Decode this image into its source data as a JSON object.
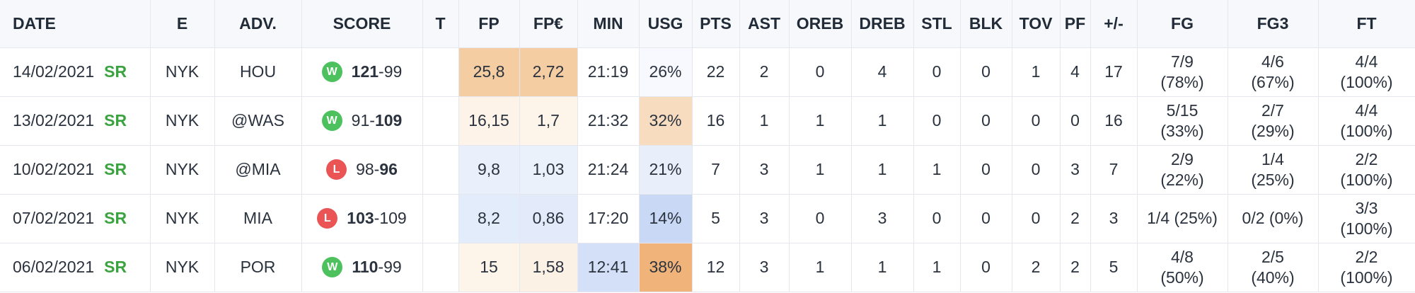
{
  "table": {
    "headers": [
      "DATE",
      "E",
      "ADV.",
      "SCORE",
      "T",
      "FP",
      "FP€",
      "MIN",
      "USG",
      "PTS",
      "AST",
      "OREB",
      "DREB",
      "STL",
      "BLK",
      "TOV",
      "PF",
      "+/-",
      "FG",
      "FG3",
      "FT"
    ],
    "rows": [
      {
        "date": "14/02/2021",
        "status": "SR",
        "team": "NYK",
        "opponent": "HOU",
        "result": "W",
        "result_type": "win",
        "score_a": "121",
        "score_sep": "-",
        "score_b": "99",
        "bold": "a",
        "t": "",
        "fp": "25,8",
        "fp_bg": "#f5cda3",
        "fpe": "2,72",
        "fpe_bg": "#f5cda3",
        "min": "21:19",
        "min_bg": "#ffffff",
        "usg": "26%",
        "usg_bg": "#f7f9fe",
        "pts": "22",
        "ast": "2",
        "oreb": "0",
        "dreb": "4",
        "stl": "0",
        "blk": "0",
        "tov": "1",
        "pf": "4",
        "pm": "17",
        "fg_a": "7/9",
        "fg_b": "(78%)",
        "fg3_a": "4/6",
        "fg3_b": "(67%)",
        "ft_a": "4/4",
        "ft_b": "(100%)"
      },
      {
        "date": "13/02/2021",
        "status": "SR",
        "team": "NYK",
        "opponent": "@WAS",
        "result": "W",
        "result_type": "win",
        "score_a": "91",
        "score_sep": "-",
        "score_b": "109",
        "bold": "b",
        "t": "",
        "fp": "16,15",
        "fp_bg": "#fdf3e9",
        "fpe": "1,7",
        "fpe_bg": "#fdf4ea",
        "min": "21:32",
        "min_bg": "#ffffff",
        "usg": "32%",
        "usg_bg": "#f8dcc0",
        "pts": "16",
        "ast": "1",
        "oreb": "1",
        "dreb": "1",
        "stl": "0",
        "blk": "0",
        "tov": "0",
        "pf": "0",
        "pm": "16",
        "fg_a": "5/15",
        "fg_b": "(33%)",
        "fg3_a": "2/7",
        "fg3_b": "(29%)",
        "ft_a": "4/4",
        "ft_b": "(100%)"
      },
      {
        "date": "10/02/2021",
        "status": "SR",
        "team": "NYK",
        "opponent": "@MIA",
        "result": "L",
        "result_type": "loss",
        "score_a": "98",
        "score_sep": "-",
        "score_b": "96",
        "bold": "b",
        "t": "",
        "fp": "9,8",
        "fp_bg": "#e9f0fb",
        "fpe": "1,03",
        "fpe_bg": "#ebf1fb",
        "min": "21:24",
        "min_bg": "#ffffff",
        "usg": "21%",
        "usg_bg": "#e8effb",
        "pts": "7",
        "ast": "3",
        "oreb": "1",
        "dreb": "1",
        "stl": "1",
        "blk": "0",
        "tov": "0",
        "pf": "3",
        "pm": "7",
        "fg_a": "2/9",
        "fg_b": "(22%)",
        "fg3_a": "1/4",
        "fg3_b": "(25%)",
        "ft_a": "2/2",
        "ft_b": "(100%)"
      },
      {
        "date": "07/02/2021",
        "status": "SR",
        "team": "NYK",
        "opponent": "MIA",
        "result": "L",
        "result_type": "loss",
        "score_a": "103",
        "score_sep": "-",
        "score_b": "109",
        "bold": "a",
        "t": "",
        "fp": "8,2",
        "fp_bg": "#e3ecfa",
        "fpe": "0,86",
        "fpe_bg": "#e3ebfa",
        "min": "17:20",
        "min_bg": "#ffffff",
        "usg": "14%",
        "usg_bg": "#c9d9f5",
        "pts": "5",
        "ast": "3",
        "oreb": "0",
        "dreb": "3",
        "stl": "0",
        "blk": "0",
        "tov": "0",
        "pf": "2",
        "pm": "3",
        "fg_a": "1/4 (25%)",
        "fg_b": "",
        "fg3_a": "0/2 (0%)",
        "fg3_b": "",
        "ft_a": "3/3",
        "ft_b": "(100%)"
      },
      {
        "date": "06/02/2021",
        "status": "SR",
        "team": "NYK",
        "opponent": "POR",
        "result": "W",
        "result_type": "win",
        "score_a": "110",
        "score_sep": "-",
        "score_b": "99",
        "bold": "a",
        "t": "",
        "fp": "15",
        "fp_bg": "#fdf4ea",
        "fpe": "1,58",
        "fpe_bg": "#fcf1e5",
        "min": "12:41",
        "min_bg": "#d3e0f7",
        "usg": "38%",
        "usg_bg": "#f0b379",
        "pts": "12",
        "ast": "3",
        "oreb": "1",
        "dreb": "1",
        "stl": "1",
        "blk": "0",
        "tov": "2",
        "pf": "2",
        "pm": "5",
        "fg_a": "4/8",
        "fg_b": "(50%)",
        "fg3_a": "2/5",
        "fg3_b": "(40%)",
        "ft_a": "2/2",
        "ft_b": "(100%)"
      }
    ]
  }
}
